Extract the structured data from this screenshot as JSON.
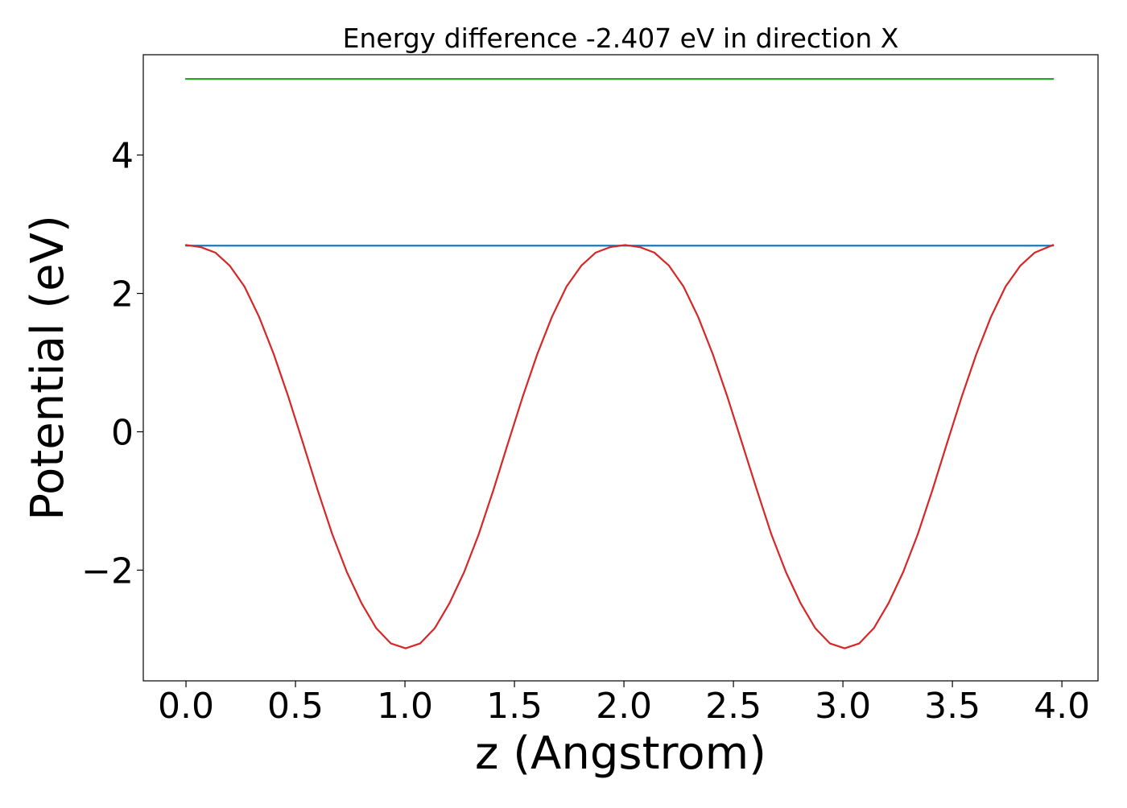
{
  "chart_data": {
    "type": "line",
    "title": "Energy difference -2.407 eV in direction X",
    "xlabel": "z (Angstrom)",
    "ylabel": "Potential (eV)",
    "xlim": [
      -0.195,
      4.165
    ],
    "ylim": [
      -3.6,
      5.45
    ],
    "xticks": [
      0.0,
      0.5,
      1.0,
      1.5,
      2.0,
      2.5,
      3.0,
      3.5,
      4.0
    ],
    "xtick_labels": [
      "0.0",
      "0.5",
      "1.0",
      "1.5",
      "2.0",
      "2.5",
      "3.0",
      "3.5",
      "4.0"
    ],
    "yticks": [
      -2,
      0,
      2,
      4
    ],
    "ytick_labels": [
      "−2",
      "0",
      "2",
      "4"
    ],
    "grid": false,
    "series": [
      {
        "color": "#2ca02c",
        "x": [
          0.0,
          3.96
        ],
        "y": [
          5.1,
          5.1
        ]
      },
      {
        "color": "#1f77b4",
        "x": [
          0.0,
          3.96
        ],
        "y": [
          2.69,
          2.69
        ]
      },
      {
        "color": "#d62728",
        "x": [
          0.0,
          0.067,
          0.134,
          0.2,
          0.267,
          0.334,
          0.401,
          0.468,
          0.535,
          0.601,
          0.668,
          0.735,
          0.802,
          0.869,
          0.936,
          1.003,
          1.069,
          1.136,
          1.203,
          1.27,
          1.337,
          1.404,
          1.47,
          1.537,
          1.604,
          1.671,
          1.738,
          1.805,
          1.871,
          1.938,
          2.005,
          2.072,
          2.139,
          2.206,
          2.272,
          2.339,
          2.406,
          2.473,
          2.54,
          2.607,
          2.673,
          2.74,
          2.807,
          2.874,
          2.941,
          3.008,
          3.074,
          3.141,
          3.208,
          3.275,
          3.342,
          3.409,
          3.475,
          3.542,
          3.609,
          3.676,
          3.743,
          3.81,
          3.876,
          3.96
        ],
        "y": [
          2.7,
          2.67,
          2.59,
          2.4,
          2.1,
          1.66,
          1.12,
          0.5,
          -0.17,
          -0.84,
          -1.48,
          -2.03,
          -2.48,
          -2.84,
          -3.06,
          -3.13,
          -3.06,
          -2.84,
          -2.48,
          -2.03,
          -1.48,
          -0.84,
          -0.17,
          0.5,
          1.12,
          1.66,
          2.1,
          2.4,
          2.59,
          2.67,
          2.7,
          2.67,
          2.59,
          2.4,
          2.1,
          1.66,
          1.12,
          0.5,
          -0.17,
          -0.84,
          -1.48,
          -2.03,
          -2.48,
          -2.84,
          -3.06,
          -3.13,
          -3.06,
          -2.84,
          -2.48,
          -2.03,
          -1.48,
          -0.84,
          -0.17,
          0.5,
          1.12,
          1.66,
          2.1,
          2.4,
          2.59,
          2.7
        ]
      }
    ]
  }
}
